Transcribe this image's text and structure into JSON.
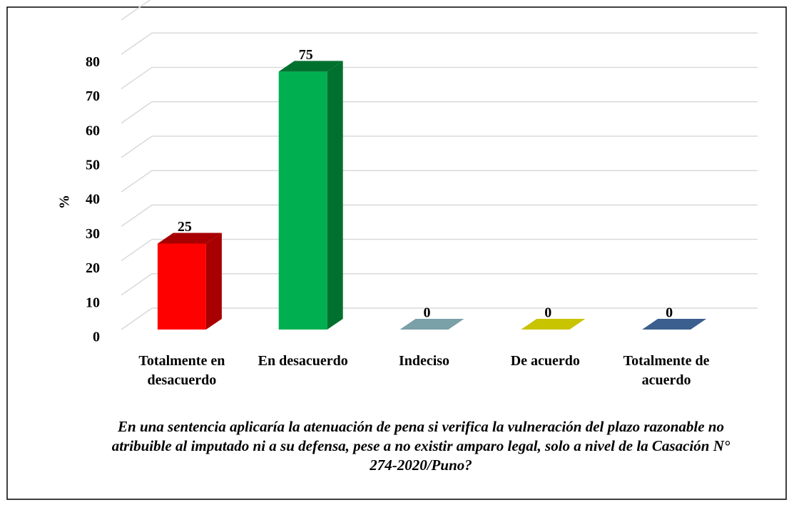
{
  "chart_data": {
    "type": "bar3d",
    "title": "En una sentencia aplicaría la atenuación de pena si verifica la vulneración del plazo razonable no atribuible al imputado ni a su defensa, pese a no existir amparo legal, solo a nivel de la Casación N° 274-2020/Puno?",
    "y_label": "%",
    "categories": [
      "Totalmente en desacuerdo",
      "En desacuerdo",
      "Indeciso",
      "De acuerdo",
      "Totalmente de acuerdo"
    ],
    "values": [
      25,
      75,
      0,
      0,
      0
    ],
    "colors": [
      "#ff0000",
      "#00b050",
      "#7aa0a8",
      "#c8c400",
      "#3b5f8e"
    ],
    "side_colors": [
      "#a80000",
      "#00702f",
      "#56767c",
      "#8e8b00",
      "#28426a"
    ],
    "ylim": [
      0,
      90
    ],
    "yticks": [
      0,
      10,
      20,
      30,
      40,
      50,
      60,
      70,
      80
    ],
    "grid": true
  }
}
